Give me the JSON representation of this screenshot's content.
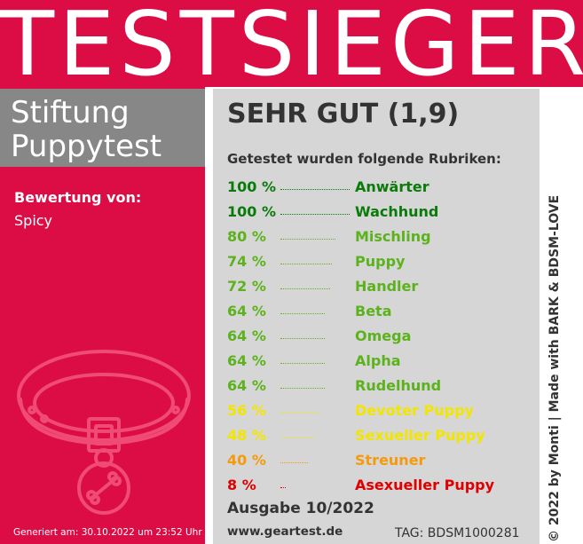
{
  "banner": {
    "title": "TESTSIEGER"
  },
  "organization": {
    "line1": "Stiftung",
    "line2": "Puppytest"
  },
  "rating": {
    "label": "Bewertung von:",
    "by": "Spicy"
  },
  "generated": "Generiert am: 30.10.2022 um 23:52 Uhr",
  "grade": "SEHR GUT (1,9)",
  "intro": "Getestet wurden folgende Rubriken:",
  "categories": [
    {
      "percent": "100 %",
      "name": "Anwärter",
      "color": "#0a7a0a",
      "value": 100
    },
    {
      "percent": "100 %",
      "name": "Wachhund",
      "color": "#0a7a0a",
      "value": 100
    },
    {
      "percent": "80 %",
      "name": "Mischling",
      "color": "#5cb21d",
      "value": 80
    },
    {
      "percent": "74 %",
      "name": "Puppy",
      "color": "#5cb21d",
      "value": 74
    },
    {
      "percent": "72 %",
      "name": "Handler",
      "color": "#5cb21d",
      "value": 72
    },
    {
      "percent": "64 %",
      "name": "Beta",
      "color": "#5cb21d",
      "value": 64
    },
    {
      "percent": "64 %",
      "name": "Omega",
      "color": "#5cb21d",
      "value": 64
    },
    {
      "percent": "64 %",
      "name": "Alpha",
      "color": "#5cb21d",
      "value": 64
    },
    {
      "percent": "64 %",
      "name": "Rudelhund",
      "color": "#5cb21d",
      "value": 64
    },
    {
      "percent": "56 %",
      "name": "Devoter Puppy",
      "color": "#f2e600",
      "value": 56
    },
    {
      "percent": "48 %",
      "name": "Sexueller Puppy",
      "color": "#f2e600",
      "value": 48
    },
    {
      "percent": "40 %",
      "name": "Streuner",
      "color": "#f59a0b",
      "value": 40
    },
    {
      "percent": "8 %",
      "name": "Asexueller Puppy",
      "color": "#e00000",
      "value": 8
    }
  ],
  "issue": "Ausgabe 10/2022",
  "website": "www.geartest.de",
  "tag": "TAG: BDSM1000281",
  "credit": "© 2022 by Monti | Made with BARK & BDSM-LOVE",
  "colors": {
    "brand_red": "#dc0d45",
    "org_gray": "#878787",
    "panel_gray": "#d6d6d6"
  }
}
